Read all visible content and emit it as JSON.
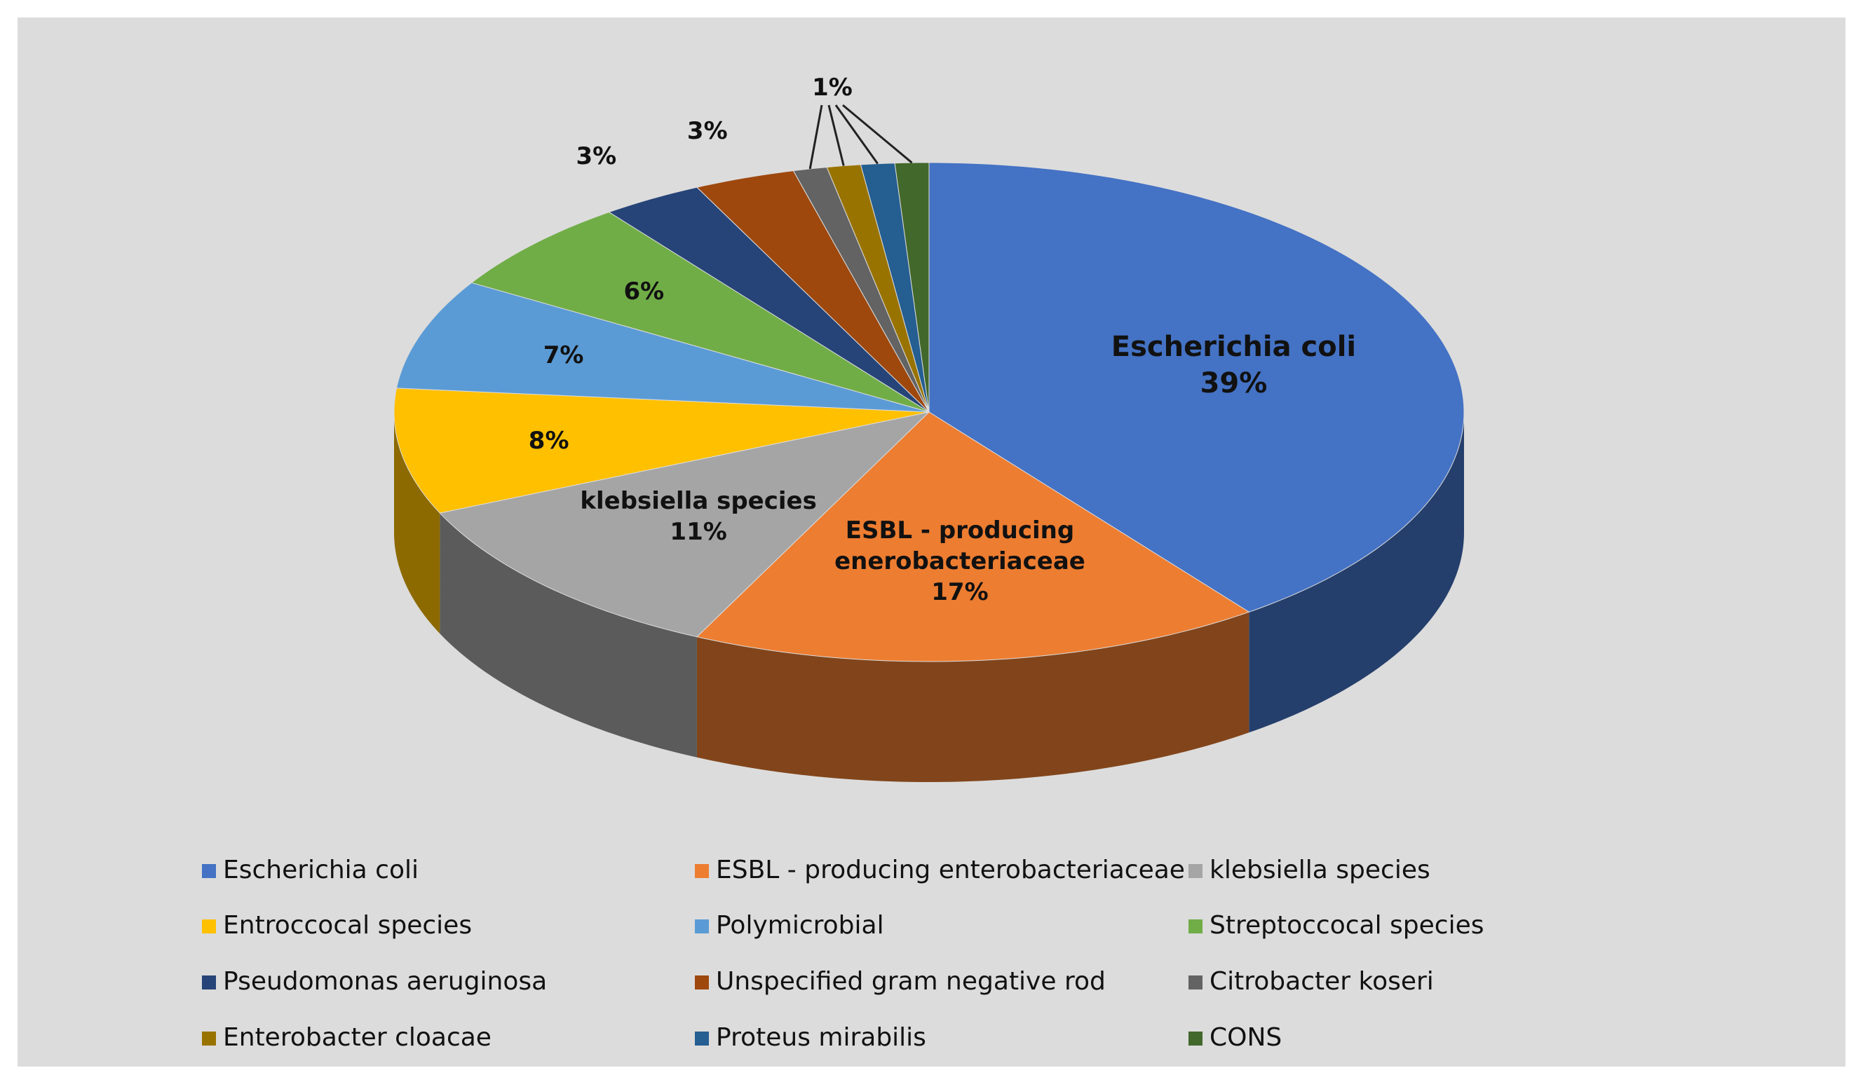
{
  "chart_data": {
    "type": "pie3d",
    "categories": [
      "Escherichia coli",
      "ESBL -  producing enterobacteriaceae",
      "klebsiella species",
      "Entroccocal species",
      "Polymicrobial",
      "Streptoccocal species",
      "Pseudomonas aeruginosa",
      "Unspecified gram negative rod",
      "Citrobacter koseri",
      "Enterobacter cloacae",
      "Proteus mirabilis",
      "CONS"
    ],
    "values": [
      39,
      17,
      11,
      8,
      7,
      6,
      3,
      3,
      1,
      1,
      1,
      1
    ],
    "value_labels": [
      "39%",
      "17%",
      "11%",
      "8%",
      "7%",
      "6%",
      "3%",
      "3%",
      "1%",
      null,
      null,
      null
    ],
    "slice_names": [
      "Escherichia coli",
      "ESBL - producing enerobacteriaceae",
      "klebsiella species",
      null,
      null,
      null,
      null,
      null,
      null,
      null,
      null,
      null
    ],
    "colors": [
      "#4472c4",
      "#ed7d31",
      "#a5a5a5",
      "#ffc000",
      "#5b9bd5",
      "#70ad47",
      "#264478",
      "#9e480e",
      "#636363",
      "#997300",
      "#255e91",
      "#43682b"
    ],
    "legend": "bottom"
  }
}
